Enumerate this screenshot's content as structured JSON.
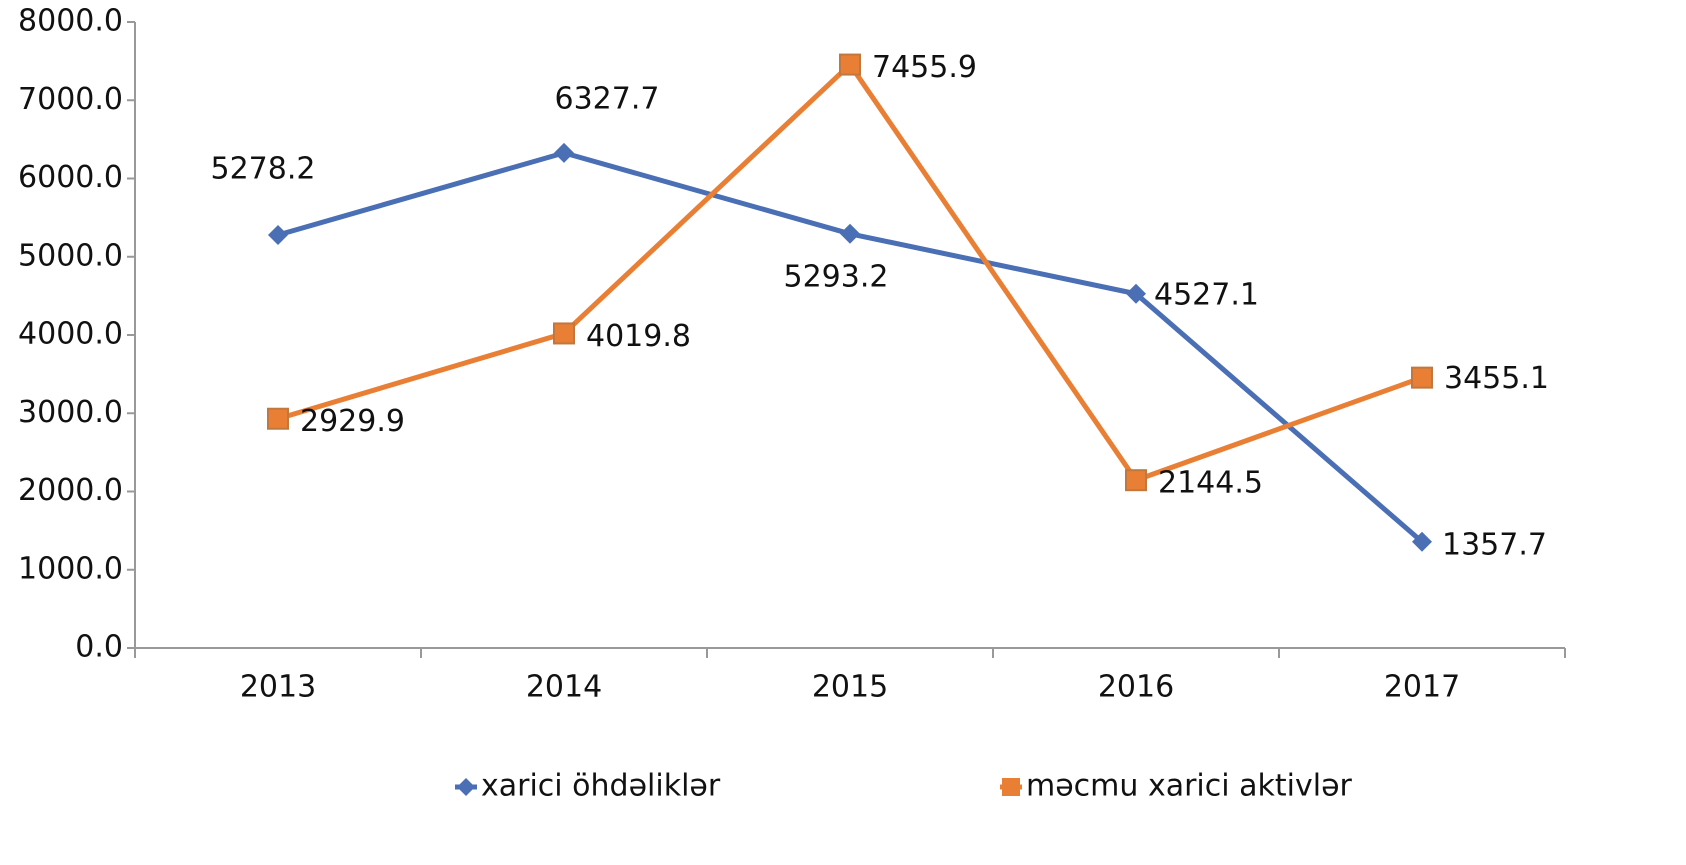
{
  "chart_data": {
    "type": "line",
    "categories": [
      "2013",
      "2014",
      "2015",
      "2016",
      "2017"
    ],
    "series": [
      {
        "name": "xarici öhdəliklər",
        "color": "#4a6fb5",
        "marker": "diamond",
        "values": [
          5278.2,
          6327.7,
          5293.2,
          4527.1,
          1357.7
        ]
      },
      {
        "name": "məcmu xarici aktivlər",
        "color": "#e97f34",
        "marker": "square",
        "values": [
          2929.9,
          4019.8,
          7455.9,
          2144.5,
          3455.1
        ]
      }
    ],
    "ylim": [
      0,
      8000
    ],
    "yticks": [
      {
        "value": 0,
        "label": "0.0"
      },
      {
        "value": 1000,
        "label": "1000.0"
      },
      {
        "value": 2000,
        "label": "2000.0"
      },
      {
        "value": 3000,
        "label": "3000.0"
      },
      {
        "value": 4000,
        "label": "4000.0"
      },
      {
        "value": 5000,
        "label": "5000.0"
      },
      {
        "value": 6000,
        "label": "6000.0"
      },
      {
        "value": 7000,
        "label": "7000.0"
      },
      {
        "value": 8000,
        "label": "8000.0"
      }
    ],
    "grid": false,
    "legend": "bottom"
  }
}
